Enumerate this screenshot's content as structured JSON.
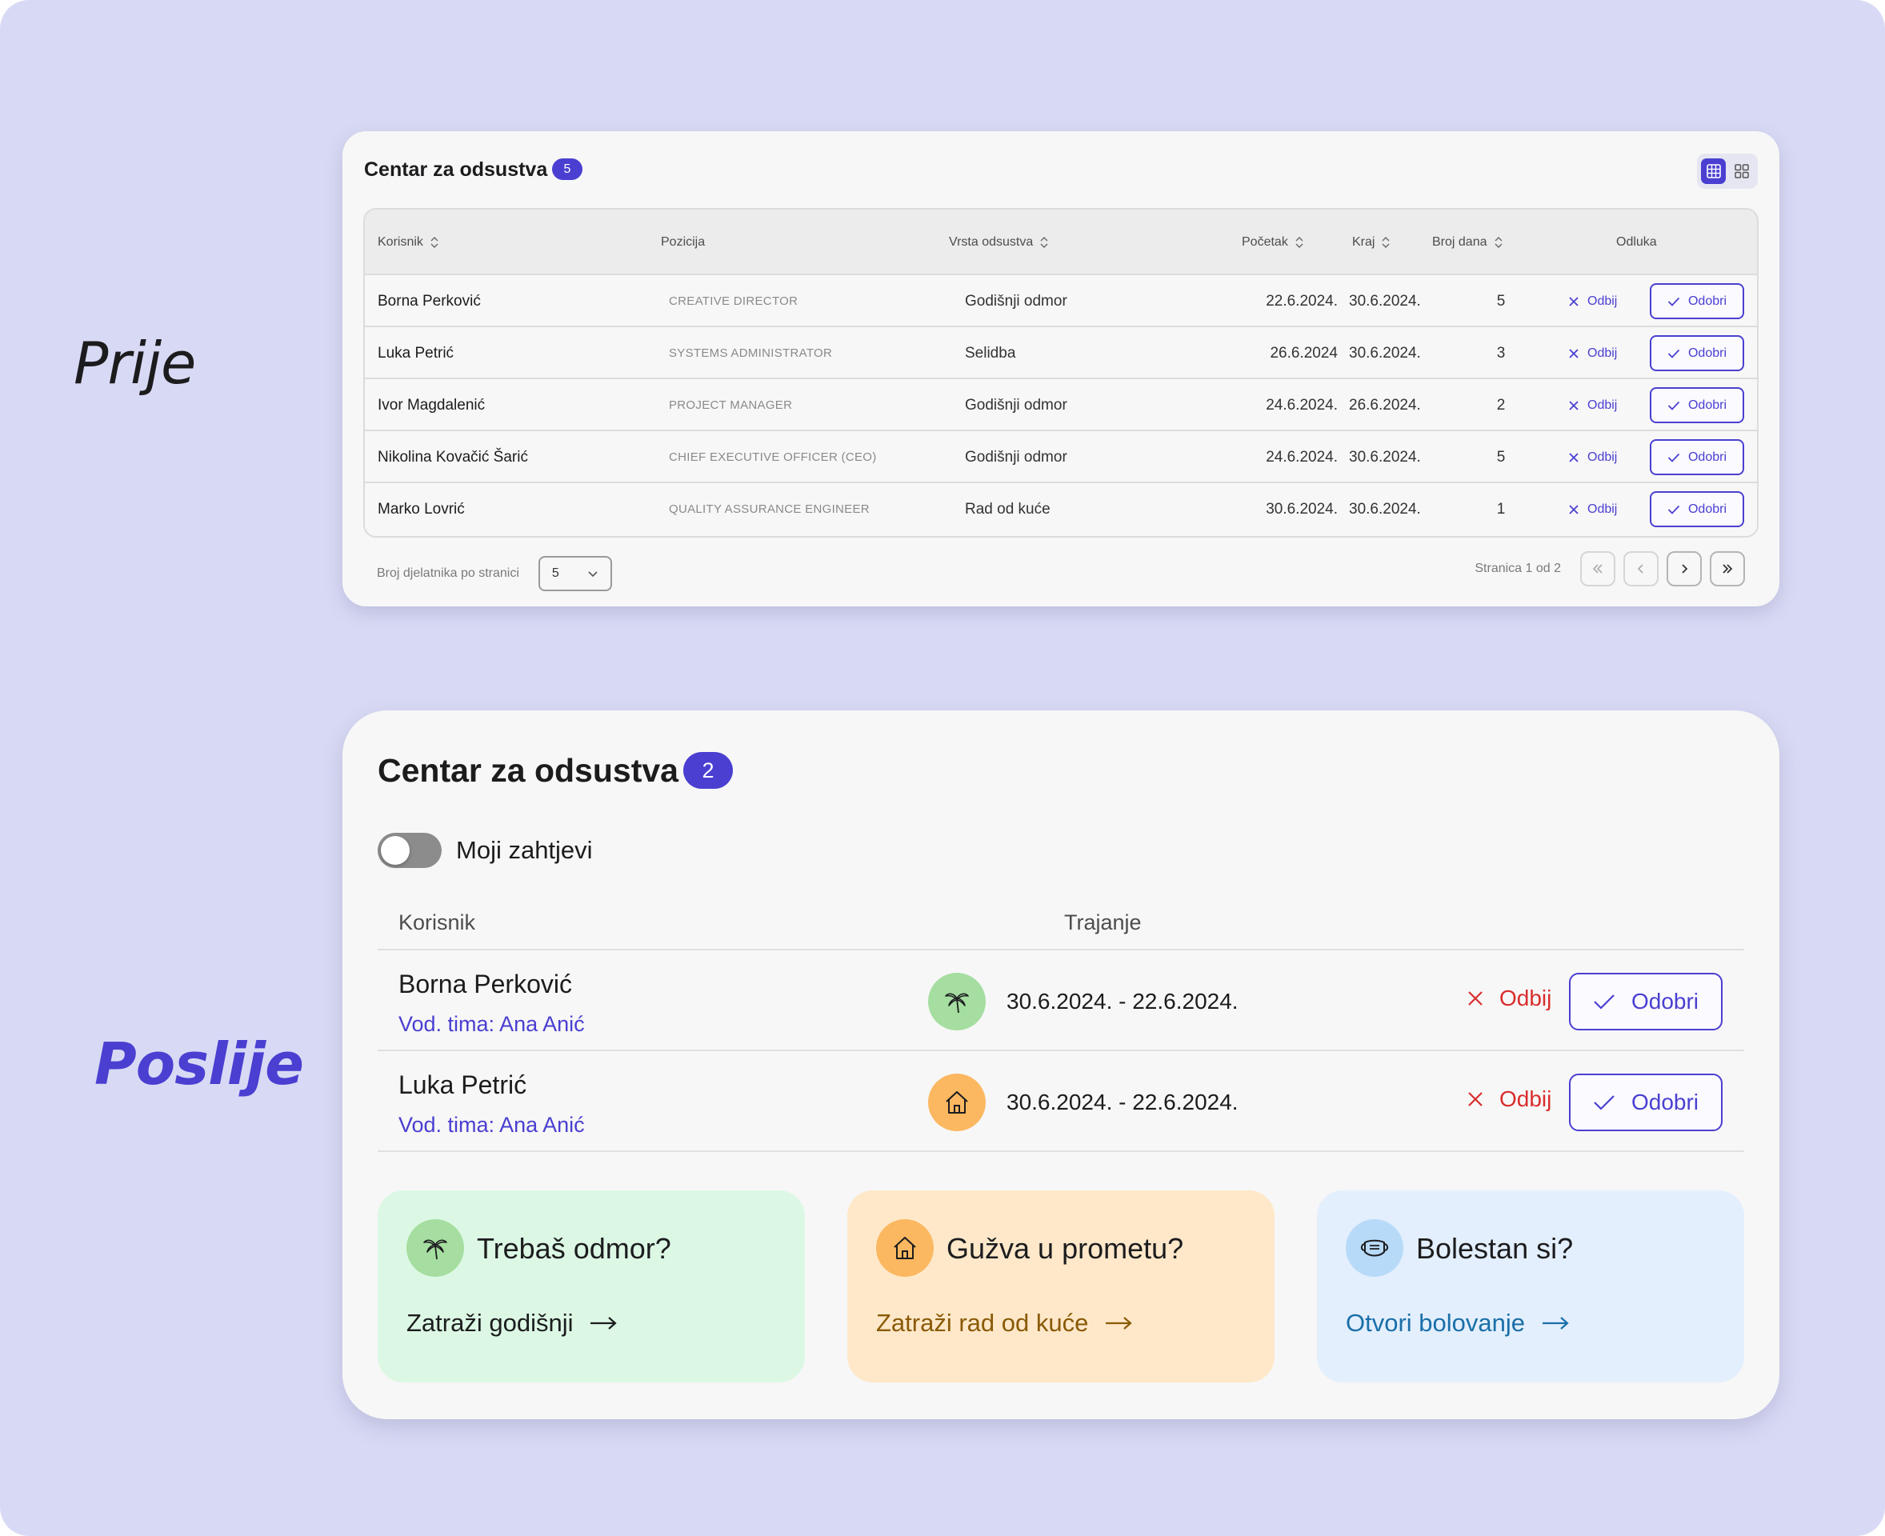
{
  "labels": {
    "before": "Prije",
    "after": "Poslije"
  },
  "before": {
    "title": "Centar za odsustva",
    "badge": "5",
    "view_toggle": [
      "table-view-icon",
      "grid-view-icon"
    ],
    "columns": {
      "user": "Korisnik",
      "position": "Pozicija",
      "type": "Vrsta odsustva",
      "start": "Početak",
      "end": "Kraj",
      "days": "Broj dana",
      "decision": "Odluka"
    },
    "rows": [
      {
        "name": "Borna Perković",
        "position": "CREATIVE DIRECTOR",
        "type": "Godišnji odmor",
        "start": "22.6.2024.",
        "end": "30.6.2024.",
        "days": "5"
      },
      {
        "name": "Luka Petrić",
        "position": "SYSTEMS ADMINISTRATOR",
        "type": "Selidba",
        "start": "26.6.2024",
        "end": "30.6.2024.",
        "days": "3"
      },
      {
        "name": "Ivor Magdalenić",
        "position": "PROJECT MANAGER",
        "type": "Godišnji odmor",
        "start": "24.6.2024.",
        "end": "26.6.2024.",
        "days": "2"
      },
      {
        "name": "Nikolina Kovačić Šarić",
        "position": "CHIEF EXECUTIVE OFFICER (CEO)",
        "type": "Godišnji odmor",
        "start": "24.6.2024.",
        "end": "30.6.2024.",
        "days": "5"
      },
      {
        "name": "Marko Lovrić",
        "position": "QUALITY ASSURANCE ENGINEER",
        "type": "Rad od kuće",
        "start": "30.6.2024.",
        "end": "30.6.2024.",
        "days": "1"
      }
    ],
    "reject_label": "Odbij",
    "approve_label": "Odobri",
    "per_page_label": "Broj djelatnika po stranici",
    "per_page_value": "5",
    "page_info": "Stranica 1 od 2"
  },
  "after": {
    "title": "Centar za odsustva",
    "badge": "2",
    "toggle_label": "Moji zahtjevi",
    "toggle_on": false,
    "columns": {
      "user": "Korisnik",
      "duration": "Trajanje"
    },
    "rows": [
      {
        "name": "Borna Perković",
        "lead": "Vod. tima: Ana Anić",
        "icon": "palm-tree-icon",
        "icon_color": "#a5dea0",
        "dates": "30.6.2024. - 22.6.2024."
      },
      {
        "name": "Luka Petrić",
        "lead": "Vod. tima: Ana Anić",
        "icon": "home-icon",
        "icon_color": "#fbb860",
        "dates": "30.6.2024. - 22.6.2024."
      }
    ],
    "reject_label": "Odbij",
    "approve_label": "Odobri",
    "promos": [
      {
        "title": "Trebaš odmor?",
        "link": "Zatraži godišnji",
        "icon": "palm-tree-icon",
        "bg": "#dcf8e5",
        "icon_bg": "#a5dea0",
        "link_color": "#1c1c1e"
      },
      {
        "title": "Gužva u prometu?",
        "link": "Zatraži rad od kuće",
        "icon": "home-icon",
        "bg": "#fee8c9",
        "icon_bg": "#fbb860",
        "link_color": "#8a5a06"
      },
      {
        "title": "Bolestan si?",
        "link": "Otvori bolovanje",
        "icon": "face-mask-icon",
        "bg": "#e3effd",
        "icon_bg": "#b7daf8",
        "link_color": "#1a6fa8"
      }
    ]
  },
  "colors": {
    "accent": "#4a3fd1",
    "reject_red": "#d92d2d",
    "background": "#d8daf5"
  }
}
